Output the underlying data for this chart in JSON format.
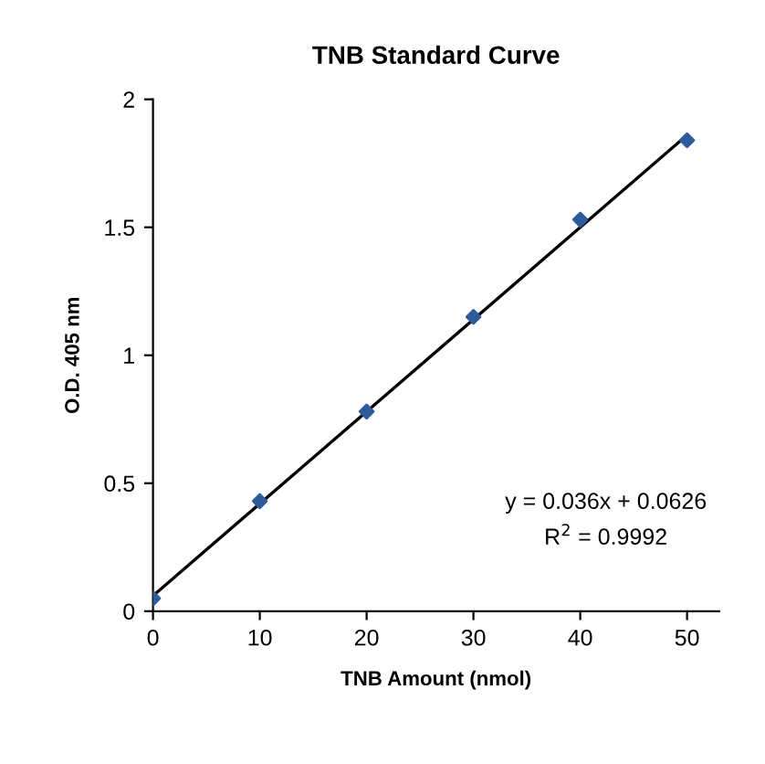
{
  "chart_data": {
    "type": "scatter",
    "title": "TNB Standard Curve",
    "xlabel": "TNB Amount (nmol)",
    "ylabel": "O.D. 405 nm",
    "xlim": [
      0,
      53
    ],
    "xticks": [
      0,
      10,
      20,
      30,
      40,
      50
    ],
    "ylim": [
      0,
      2
    ],
    "yticks": [
      0,
      0.5,
      1,
      1.5,
      2
    ],
    "grid": false,
    "legend": false,
    "marker": "diamond",
    "series": [
      {
        "color": "#2e5c9a",
        "x": [
          0,
          10,
          20,
          30,
          40,
          50
        ],
        "values": [
          0.05,
          0.43,
          0.78,
          1.15,
          1.53,
          1.84
        ]
      },
      {
        "type": "line",
        "color": "#000000",
        "x": [
          0,
          50
        ],
        "values": [
          0.06,
          1.86
        ],
        "marker": "none",
        "line_style": "solid"
      }
    ],
    "annotations": [
      "y = 0.036x + 0.0626",
      "R$^{2}$ = 0.9992"
    ]
  }
}
